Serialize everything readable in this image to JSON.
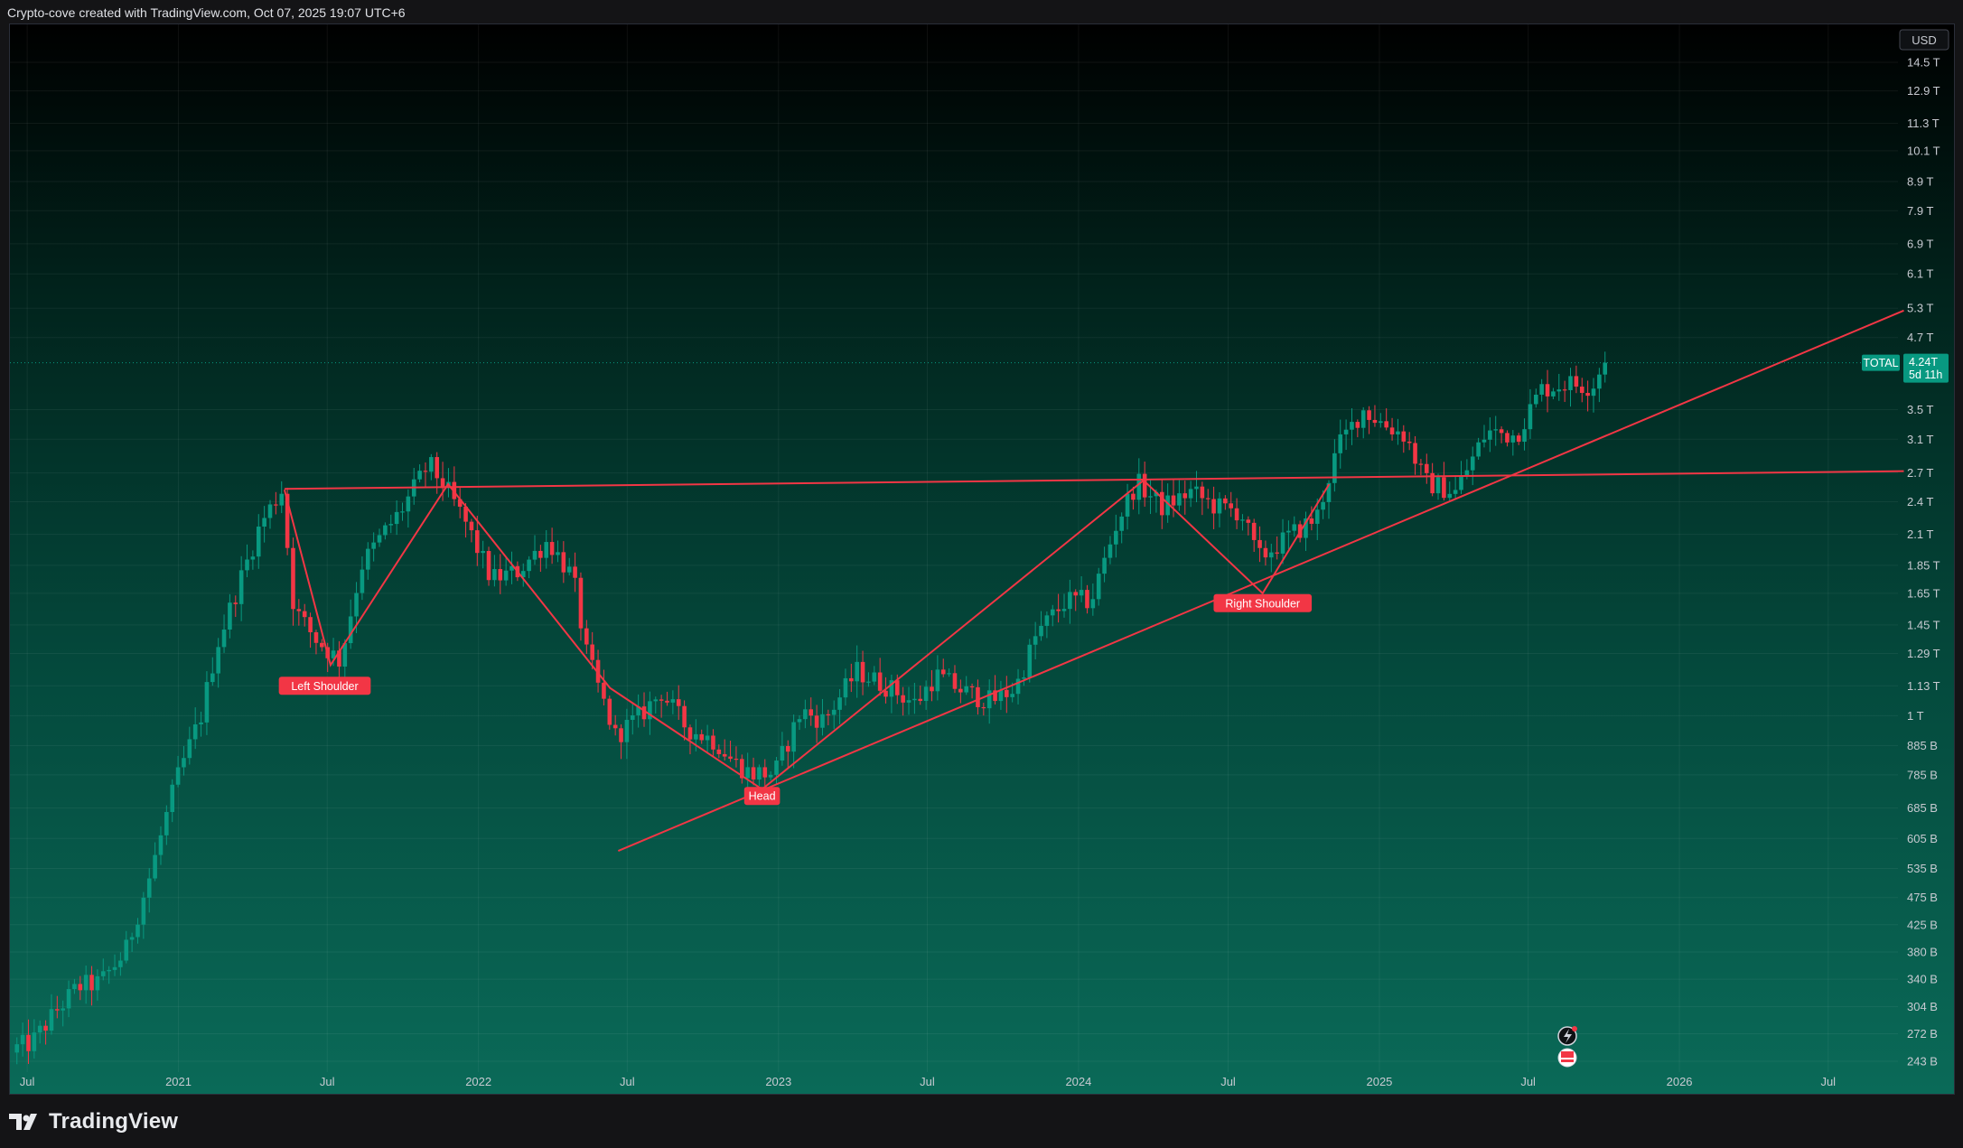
{
  "header": {
    "caption": "Crypto-cove created with TradingView.com, Oct 07, 2025 19:07 UTC+6"
  },
  "branding": {
    "logo_text": "TradingView",
    "logo_icon": "tradingview-logo-icon"
  },
  "chart_data": {
    "type": "candlestick",
    "series_name": "TOTAL",
    "currency": "USD",
    "scale": "log",
    "timeframe": "weekly",
    "grid": true,
    "colors": {
      "up": "#089981",
      "down": "#f23645",
      "pattern": "#f23645",
      "background_top": "#000000",
      "background_bottom": "#0a6a58",
      "last_price_bg": "#089981"
    },
    "y_ticks": [
      {
        "label": "14.5 T",
        "value": 14500000000000.0
      },
      {
        "label": "12.9 T",
        "value": 12900000000000.0
      },
      {
        "label": "11.3 T",
        "value": 11300000000000.0
      },
      {
        "label": "10.1 T",
        "value": 10100000000000.0
      },
      {
        "label": "8.9 T",
        "value": 8900000000000.0
      },
      {
        "label": "7.9 T",
        "value": 7900000000000.0
      },
      {
        "label": "6.9 T",
        "value": 6900000000000.0
      },
      {
        "label": "6.1 T",
        "value": 6100000000000.0
      },
      {
        "label": "5.3 T",
        "value": 5300000000000.0
      },
      {
        "label": "4.7 T",
        "value": 4700000000000.0
      },
      {
        "label": "3.5 T",
        "value": 3500000000000.0
      },
      {
        "label": "3.1 T",
        "value": 3100000000000.0
      },
      {
        "label": "2.7 T",
        "value": 2700000000000.0
      },
      {
        "label": "2.4 T",
        "value": 2400000000000.0
      },
      {
        "label": "2.1 T",
        "value": 2100000000000.0
      },
      {
        "label": "1.85 T",
        "value": 1850000000000.0
      },
      {
        "label": "1.65 T",
        "value": 1650000000000.0
      },
      {
        "label": "1.45 T",
        "value": 1450000000000.0
      },
      {
        "label": "1.29 T",
        "value": 1290000000000.0
      },
      {
        "label": "1.13 T",
        "value": 1130000000000.0
      },
      {
        "label": "1 T",
        "value": 1000000000000.0
      },
      {
        "label": "885 B",
        "value": 885000000000.0
      },
      {
        "label": "785 B",
        "value": 785000000000.0
      },
      {
        "label": "685 B",
        "value": 685000000000.0
      },
      {
        "label": "605 B",
        "value": 605000000000.0
      },
      {
        "label": "535 B",
        "value": 535000000000.0
      },
      {
        "label": "475 B",
        "value": 475000000000.0
      },
      {
        "label": "425 B",
        "value": 425000000000.0
      },
      {
        "label": "380 B",
        "value": 380000000000.0
      },
      {
        "label": "340 B",
        "value": 340000000000.0
      },
      {
        "label": "304 B",
        "value": 304000000000.0
      },
      {
        "label": "272 B",
        "value": 272000000000.0
      },
      {
        "label": "243 B",
        "value": 243000000000.0
      }
    ],
    "x_ticks": [
      {
        "label": "Jul",
        "date": "2020-07-01"
      },
      {
        "label": "2021",
        "date": "2021-01-01"
      },
      {
        "label": "Jul",
        "date": "2021-07-01"
      },
      {
        "label": "2022",
        "date": "2022-01-01"
      },
      {
        "label": "Jul",
        "date": "2022-07-01"
      },
      {
        "label": "2023",
        "date": "2023-01-01"
      },
      {
        "label": "Jul",
        "date": "2023-07-01"
      },
      {
        "label": "2024",
        "date": "2024-01-01"
      },
      {
        "label": "Jul",
        "date": "2024-07-01"
      },
      {
        "label": "2025",
        "date": "2025-01-01"
      },
      {
        "label": "Jul",
        "date": "2025-07-01"
      },
      {
        "label": "2026",
        "date": "2026-01-01"
      },
      {
        "label": "Jul",
        "date": "2026-07-01"
      }
    ],
    "last_price": {
      "label": "TOTAL",
      "value_label": "4.24T",
      "countdown": "5d 11h",
      "value": 4240000000000.0
    },
    "price_path": [
      [
        "2020-06-15",
        255000000000.0
      ],
      [
        "2020-07-10",
        262000000000.0
      ],
      [
        "2020-08-10",
        300000000000.0
      ],
      [
        "2020-09-05",
        330000000000.0
      ],
      [
        "2020-10-01",
        335000000000.0
      ],
      [
        "2020-11-01",
        380000000000.0
      ],
      [
        "2020-12-01",
        520000000000.0
      ],
      [
        "2021-01-01",
        760000000000.0
      ],
      [
        "2021-02-01",
        1000000000000.0
      ],
      [
        "2021-02-20",
        1330000000000.0
      ],
      [
        "2021-03-15",
        1650000000000.0
      ],
      [
        "2021-04-15",
        2200000000000.0
      ],
      [
        "2021-05-10",
        2520000000000.0
      ],
      [
        "2021-05-25",
        1550000000000.0
      ],
      [
        "2021-06-20",
        1370000000000.0
      ],
      [
        "2021-07-20",
        1250000000000.0
      ],
      [
        "2021-08-15",
        1850000000000.0
      ],
      [
        "2021-09-10",
        2100000000000.0
      ],
      [
        "2021-10-01",
        2300000000000.0
      ],
      [
        "2021-11-05",
        2800000000000.0
      ],
      [
        "2021-11-25",
        2550000000000.0
      ],
      [
        "2021-12-20",
        2200000000000.0
      ],
      [
        "2022-01-20",
        1750000000000.0
      ],
      [
        "2022-02-20",
        1800000000000.0
      ],
      [
        "2022-03-30",
        2050000000000.0
      ],
      [
        "2022-04-30",
        1750000000000.0
      ],
      [
        "2022-05-15",
        1300000000000.0
      ],
      [
        "2022-06-20",
        920000000000.0
      ],
      [
        "2022-07-20",
        1000000000000.0
      ],
      [
        "2022-08-15",
        1100000000000.0
      ],
      [
        "2022-09-15",
        950000000000.0
      ],
      [
        "2022-10-20",
        900000000000.0
      ],
      [
        "2022-11-10",
        830000000000.0
      ],
      [
        "2022-12-01",
        790000000000.0
      ],
      [
        "2022-12-31",
        790000000000.0
      ],
      [
        "2023-02-01",
        1020000000000.0
      ],
      [
        "2023-03-01",
        980000000000.0
      ],
      [
        "2023-04-10",
        1200000000000.0
      ],
      [
        "2023-05-20",
        1120000000000.0
      ],
      [
        "2023-06-20",
        1050000000000.0
      ],
      [
        "2023-07-15",
        1180000000000.0
      ],
      [
        "2023-08-20",
        1100000000000.0
      ],
      [
        "2023-09-20",
        1060000000000.0
      ],
      [
        "2023-10-20",
        1120000000000.0
      ],
      [
        "2023-11-15",
        1400000000000.0
      ],
      [
        "2023-12-20",
        1600000000000.0
      ],
      [
        "2024-01-20",
        1600000000000.0
      ],
      [
        "2024-02-20",
        2200000000000.0
      ],
      [
        "2024-03-15",
        2600000000000.0
      ],
      [
        "2024-04-15",
        2350000000000.0
      ],
      [
        "2024-05-20",
        2500000000000.0
      ],
      [
        "2024-06-20",
        2350000000000.0
      ],
      [
        "2024-07-20",
        2300000000000.0
      ],
      [
        "2024-08-10",
        1900000000000.0
      ],
      [
        "2024-09-20",
        2100000000000.0
      ],
      [
        "2024-10-20",
        2250000000000.0
      ],
      [
        "2024-11-15",
        3000000000000.0
      ],
      [
        "2024-12-15",
        3500000000000.0
      ],
      [
        "2025-01-10",
        3300000000000.0
      ],
      [
        "2025-02-05",
        3150000000000.0
      ],
      [
        "2025-03-01",
        2600000000000.0
      ],
      [
        "2025-04-07",
        2500000000000.0
      ],
      [
        "2025-05-15",
        3200000000000.0
      ],
      [
        "2025-06-20",
        3150000000000.0
      ],
      [
        "2025-07-20",
        3800000000000.0
      ],
      [
        "2025-08-20",
        3900000000000.0
      ],
      [
        "2025-09-20",
        3850000000000.0
      ],
      [
        "2025-10-05",
        4240000000000.0
      ]
    ],
    "annotations": [
      {
        "text": "Left Shoulder",
        "date": "2021-06-28",
        "value": 1130000000000.0
      },
      {
        "text": "Head",
        "date": "2022-12-12",
        "value": 720000000000.0
      },
      {
        "text": "Right Shoulder",
        "date": "2024-08-12",
        "value": 1585000000000.0
      }
    ],
    "pattern_lines": [
      {
        "name": "neckline",
        "from": [
          "2021-05-10",
          2530000000000.0
        ],
        "to": [
          "2026-10-01",
          2720000000000.0
        ]
      },
      {
        "name": "rising-trendline",
        "from": [
          "2022-06-20",
          575000000000.0
        ],
        "to": [
          "2026-10-01",
          5250000000000.0
        ]
      },
      {
        "name": "zigzag",
        "points": [
          [
            "2021-05-10",
            2520000000000.0
          ],
          [
            "2021-07-05",
            1230000000000.0
          ],
          [
            "2021-11-25",
            2580000000000.0
          ],
          [
            "2022-06-10",
            1120000000000.0
          ],
          [
            "2022-12-12",
            740000000000.0
          ],
          [
            "2024-03-20",
            2620000000000.0
          ],
          [
            "2024-08-12",
            1650000000000.0
          ],
          [
            "2024-11-01",
            2580000000000.0
          ]
        ]
      }
    ]
  }
}
